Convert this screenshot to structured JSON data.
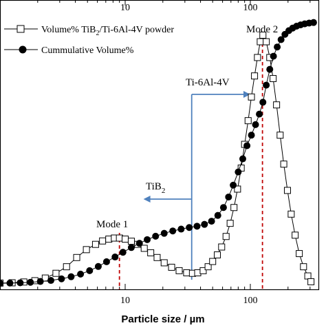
{
  "chart_data": {
    "type": "line",
    "xscale": "log",
    "xlim": [
      1,
      350
    ],
    "ylim": [
      0,
      100
    ],
    "xlabel": "Particle size / µm",
    "ylabel": "",
    "xticks": [
      10,
      100
    ],
    "xtick_labels": [
      "10",
      "100"
    ],
    "grid": false,
    "legend_position": "top-left",
    "colors": {
      "series": "#000000",
      "mode_marker": "#c00000",
      "boundary_arrow": "#4f81bd"
    },
    "legend": {
      "volume_prefix": "Volume% TiB",
      "volume_sub": "2",
      "volume_suffix": "/Ti-6Al-4V powder",
      "cumulative": "Cummulative Volume%"
    },
    "annotations": {
      "mode1": "Mode 1",
      "mode1_x": 9,
      "mode2": "Mode 2",
      "mode2_x": 125,
      "boundary_x": 34,
      "ti_label": "Ti-6Al-4V",
      "tib2_prefix": "TiB",
      "tib2_sub": "2"
    },
    "series": [
      {
        "name": "Volume% TiB2/Ti-6Al-4V powder",
        "marker": "open-square",
        "x": [
          1.0,
          1.25,
          1.55,
          1.9,
          2.3,
          2.8,
          3.4,
          4.1,
          4.9,
          5.8,
          6.6,
          7.4,
          8.2,
          9.0,
          10.0,
          11.2,
          12.6,
          14.2,
          16.0,
          18.0,
          20.5,
          23.5,
          27.0,
          31.0,
          34.5,
          38.0,
          42.0,
          46.0,
          50.0,
          54.5,
          59.0,
          64.0,
          69.0,
          74.0,
          79.0,
          84.5,
          90.0,
          96.0,
          102.0,
          108.0,
          114.0,
          120.0,
          126.0,
          134.0,
          143.0,
          152.0,
          162.0,
          173.0,
          185.0,
          198.0,
          212.0,
          228.0,
          246.0,
          266.0,
          288.0,
          305.0
        ],
        "y": [
          0.3,
          0.4,
          0.7,
          1.2,
          2.2,
          4.0,
          6.5,
          10.0,
          13.0,
          15.0,
          16.3,
          17.0,
          17.4,
          17.4,
          17.0,
          16.2,
          15.0,
          13.5,
          11.8,
          10.0,
          8.0,
          6.3,
          5.0,
          4.2,
          4.0,
          4.2,
          5.0,
          6.5,
          8.5,
          11.0,
          14.0,
          18.0,
          23.0,
          29.0,
          36.0,
          44.0,
          53.0,
          62.0,
          71.0,
          79.0,
          86.0,
          92.0,
          94.5,
          92.0,
          86.0,
          78.0,
          68.0,
          56.5,
          45.5,
          35.5,
          26.5,
          18.5,
          11.5,
          6.5,
          3.0,
          0.8
        ]
      },
      {
        "name": "Cummulative Volume%",
        "marker": "filled-circle",
        "x": [
          1.0,
          1.2,
          1.45,
          1.75,
          2.1,
          2.55,
          3.1,
          3.7,
          4.4,
          5.2,
          6.1,
          7.1,
          8.3,
          9.6,
          11.2,
          13.0,
          15.0,
          17.5,
          20.5,
          24.0,
          28.0,
          32.5,
          37.5,
          43.0,
          49.0,
          55.0,
          61.0,
          67.0,
          73.0,
          80.0,
          87.0,
          94.0,
          102.0,
          110.0,
          118.0,
          126.0,
          134.0,
          143.0,
          153.0,
          164.0,
          176.0,
          189.0,
          203.0,
          218.0,
          234.0,
          252.0,
          272.0,
          295.0,
          320.0
        ],
        "y": [
          0.2,
          0.3,
          0.4,
          0.6,
          0.9,
          1.3,
          1.9,
          2.7,
          3.7,
          5.0,
          6.6,
          8.4,
          10.2,
          12.0,
          13.8,
          15.4,
          16.8,
          18.1,
          19.2,
          20.1,
          20.8,
          21.4,
          21.9,
          22.6,
          23.8,
          26.0,
          29.0,
          33.0,
          37.5,
          42.5,
          47.5,
          52.5,
          56.5,
          60.5,
          64.5,
          69.0,
          75.5,
          81.5,
          86.5,
          90.0,
          92.8,
          94.8,
          96.2,
          97.2,
          97.9,
          98.4,
          98.8,
          99.1,
          99.3
        ]
      }
    ]
  }
}
